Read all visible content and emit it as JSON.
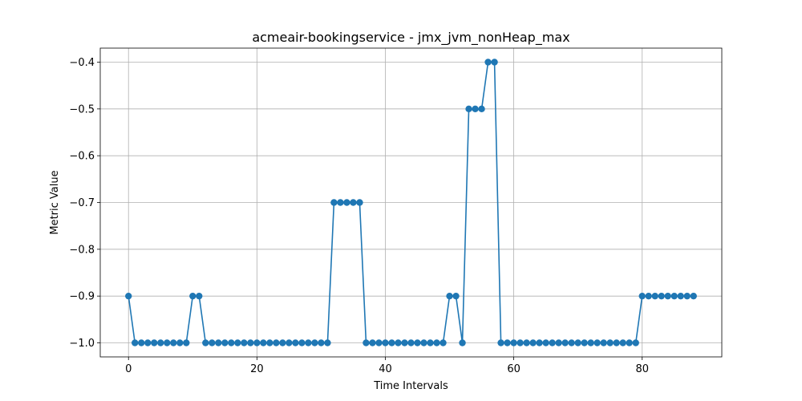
{
  "chart_data": {
    "type": "line",
    "title": "acmeair-bookingservice - jmx_jvm_nonHeap_max",
    "xlabel": "Time Intervals",
    "ylabel": "Metric Value",
    "xlim": [
      -4.4,
      92.4
    ],
    "ylim": [
      -1.03,
      -0.37
    ],
    "xticks": [
      0,
      20,
      40,
      60,
      80
    ],
    "yticks": [
      -1.0,
      -0.9,
      -0.8,
      -0.7,
      -0.6,
      -0.5,
      -0.4
    ],
    "ytick_labels": [
      "−1.0",
      "−0.9",
      "−0.8",
      "−0.7",
      "−0.6",
      "−0.5",
      "−0.4"
    ],
    "grid": true,
    "color": "#1f77b4",
    "marker": "circle",
    "series": [
      {
        "values": [
          -0.9,
          -1.0,
          -1.0,
          -1.0,
          -1.0,
          -1.0,
          -1.0,
          -1.0,
          -1.0,
          -1.0,
          -0.9,
          -0.9,
          -1.0,
          -1.0,
          -1.0,
          -1.0,
          -1.0,
          -1.0,
          -1.0,
          -1.0,
          -1.0,
          -1.0,
          -1.0,
          -1.0,
          -1.0,
          -1.0,
          -1.0,
          -1.0,
          -1.0,
          -1.0,
          -1.0,
          -1.0,
          -0.7,
          -0.7,
          -0.7,
          -0.7,
          -0.7,
          -1.0,
          -1.0,
          -1.0,
          -1.0,
          -1.0,
          -1.0,
          -1.0,
          -1.0,
          -1.0,
          -1.0,
          -1.0,
          -1.0,
          -1.0,
          -0.9,
          -0.9,
          -1.0,
          -0.5,
          -0.5,
          -0.5,
          -0.4,
          -0.4,
          -1.0,
          -1.0,
          -1.0,
          -1.0,
          -1.0,
          -1.0,
          -1.0,
          -1.0,
          -1.0,
          -1.0,
          -1.0,
          -1.0,
          -1.0,
          -1.0,
          -1.0,
          -1.0,
          -1.0,
          -1.0,
          -1.0,
          -1.0,
          -1.0,
          -1.0,
          -0.9,
          -0.9,
          -0.9,
          -0.9,
          -0.9,
          -0.9,
          -0.9,
          -0.9,
          -0.9
        ]
      }
    ]
  }
}
